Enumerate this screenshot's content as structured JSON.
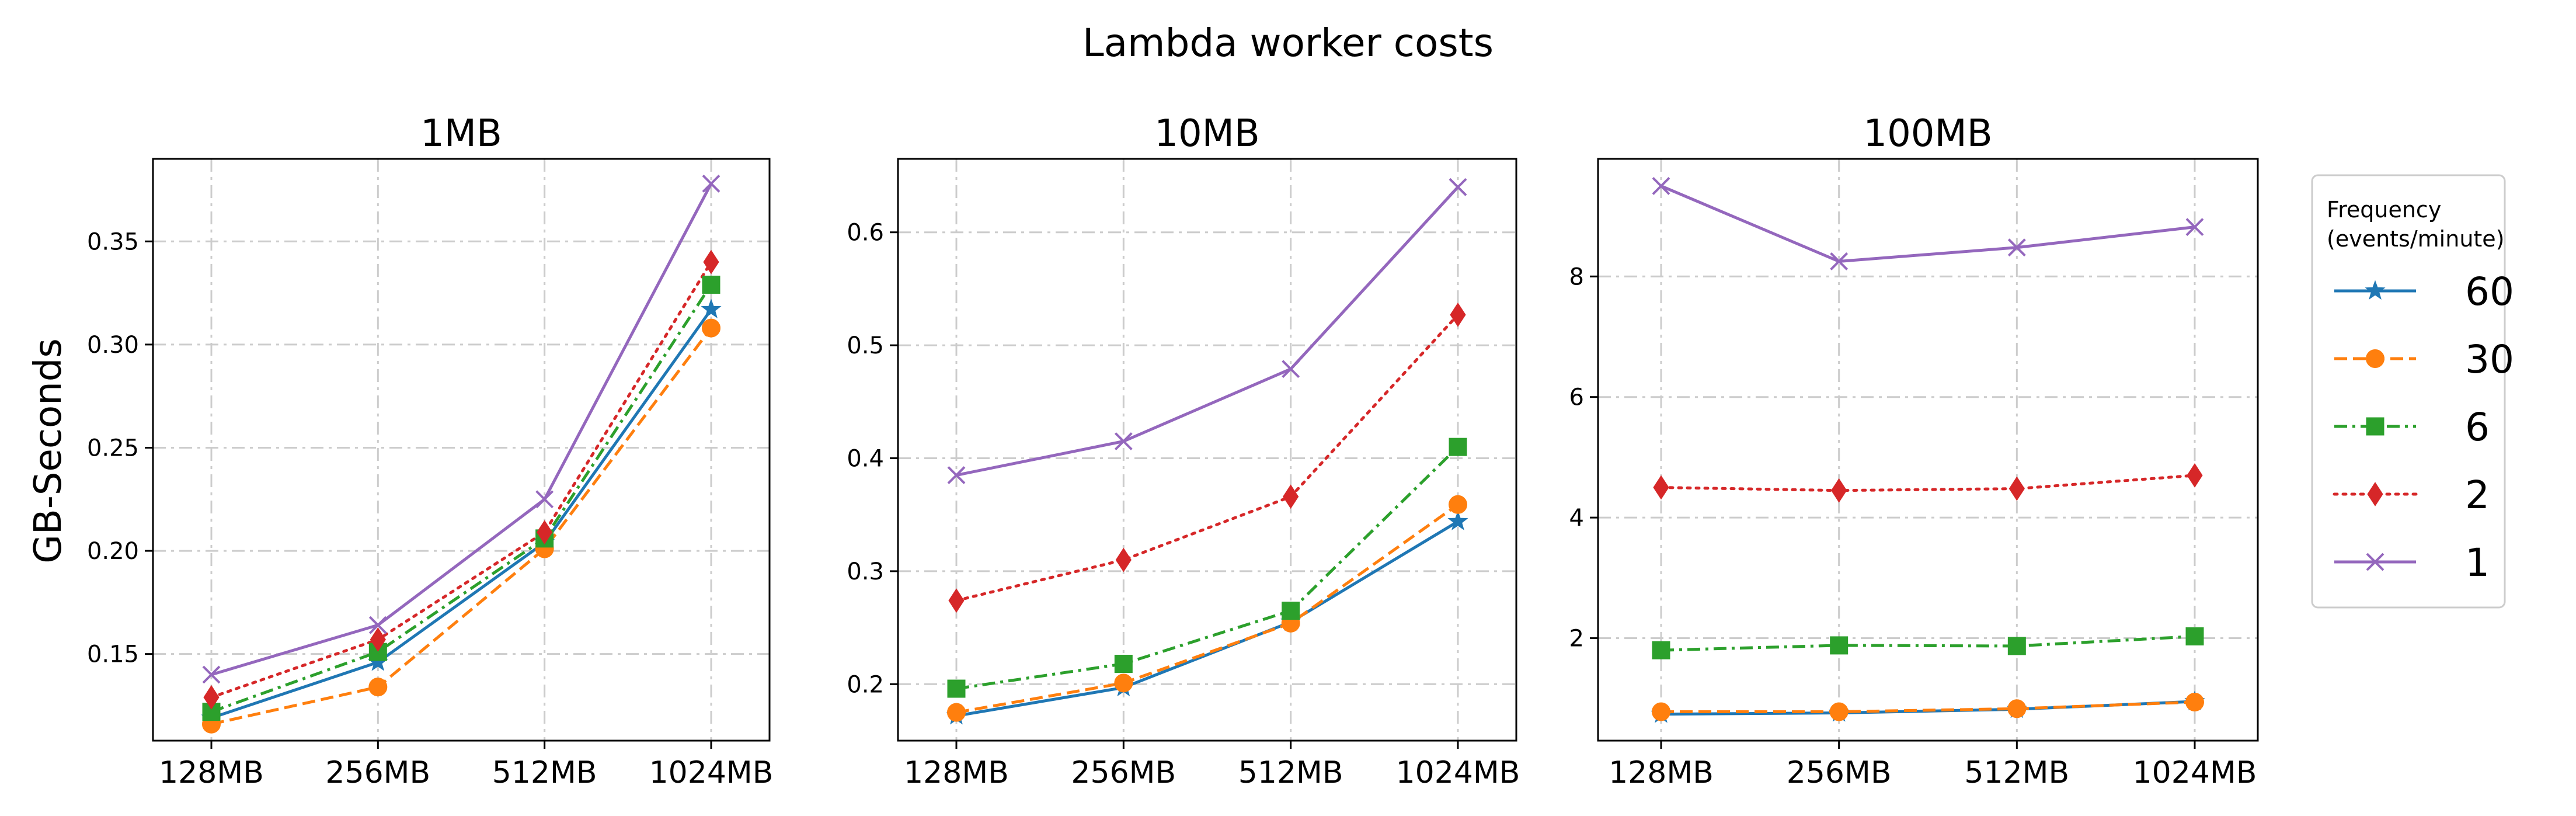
{
  "figure_title": "Lambda worker costs",
  "ylabel": "GB-Seconds",
  "legend": {
    "title_line1": "Frequency",
    "title_line2": "(events/minute)",
    "entries": [
      "60",
      "30",
      "6",
      "2",
      "1"
    ]
  },
  "series_style": [
    {
      "name": "60",
      "color": "#1f77b4",
      "marker": "star",
      "dash": "solid"
    },
    {
      "name": "30",
      "color": "#ff7f0e",
      "marker": "circle",
      "dash": "dashed"
    },
    {
      "name": "6",
      "color": "#2ca02c",
      "marker": "square",
      "dash": "dashdot"
    },
    {
      "name": "2",
      "color": "#d62728",
      "marker": "diamond",
      "dash": "dotted"
    },
    {
      "name": "1",
      "color": "#9467bd",
      "marker": "x",
      "dash": "solid"
    }
  ],
  "chart_data": [
    {
      "type": "line",
      "title": "1MB",
      "xlabel": "",
      "ylabel": "GB-Seconds",
      "categories": [
        "128MB",
        "256MB",
        "512MB",
        "1024MB"
      ],
      "ylim": [
        0.108,
        0.39
      ],
      "yticks": [
        0.15,
        0.2,
        0.25,
        0.3,
        0.35
      ],
      "ytick_labels": [
        "0.15",
        "0.20",
        "0.25",
        "0.30",
        "0.35"
      ],
      "grid": true,
      "series": [
        {
          "name": "60",
          "values": [
            0.119,
            0.146,
            0.204,
            0.317
          ]
        },
        {
          "name": "30",
          "values": [
            0.116,
            0.134,
            0.201,
            0.308
          ]
        },
        {
          "name": "6",
          "values": [
            0.122,
            0.151,
            0.206,
            0.329
          ]
        },
        {
          "name": "2",
          "values": [
            0.129,
            0.157,
            0.209,
            0.34
          ]
        },
        {
          "name": "1",
          "values": [
            0.14,
            0.164,
            0.225,
            0.378
          ]
        }
      ]
    },
    {
      "type": "line",
      "title": "10MB",
      "xlabel": "",
      "ylabel": "",
      "categories": [
        "128MB",
        "256MB",
        "512MB",
        "1024MB"
      ],
      "ylim": [
        0.15,
        0.665
      ],
      "yticks": [
        0.2,
        0.3,
        0.4,
        0.5,
        0.6
      ],
      "ytick_labels": [
        "0.2",
        "0.3",
        "0.4",
        "0.5",
        "0.6"
      ],
      "grid": true,
      "series": [
        {
          "name": "60",
          "values": [
            0.172,
            0.197,
            0.255,
            0.344
          ]
        },
        {
          "name": "30",
          "values": [
            0.175,
            0.201,
            0.254,
            0.359
          ]
        },
        {
          "name": "6",
          "values": [
            0.196,
            0.218,
            0.265,
            0.41
          ]
        },
        {
          "name": "2",
          "values": [
            0.274,
            0.31,
            0.366,
            0.527
          ]
        },
        {
          "name": "1",
          "values": [
            0.385,
            0.415,
            0.479,
            0.64
          ]
        }
      ]
    },
    {
      "type": "line",
      "title": "100MB",
      "xlabel": "",
      "ylabel": "",
      "categories": [
        "128MB",
        "256MB",
        "512MB",
        "1024MB"
      ],
      "ylim": [
        0.3,
        9.95
      ],
      "yticks": [
        2,
        4,
        6,
        8
      ],
      "ytick_labels": [
        "2",
        "4",
        "6",
        "8"
      ],
      "grid": true,
      "series": [
        {
          "name": "60",
          "values": [
            0.74,
            0.76,
            0.82,
            0.95
          ]
        },
        {
          "name": "30",
          "values": [
            0.78,
            0.78,
            0.83,
            0.94
          ]
        },
        {
          "name": "6",
          "values": [
            1.8,
            1.88,
            1.87,
            2.03
          ]
        },
        {
          "name": "2",
          "values": [
            4.5,
            4.45,
            4.48,
            4.7
          ]
        },
        {
          "name": "1",
          "values": [
            9.5,
            8.25,
            8.48,
            8.82
          ]
        }
      ]
    }
  ]
}
